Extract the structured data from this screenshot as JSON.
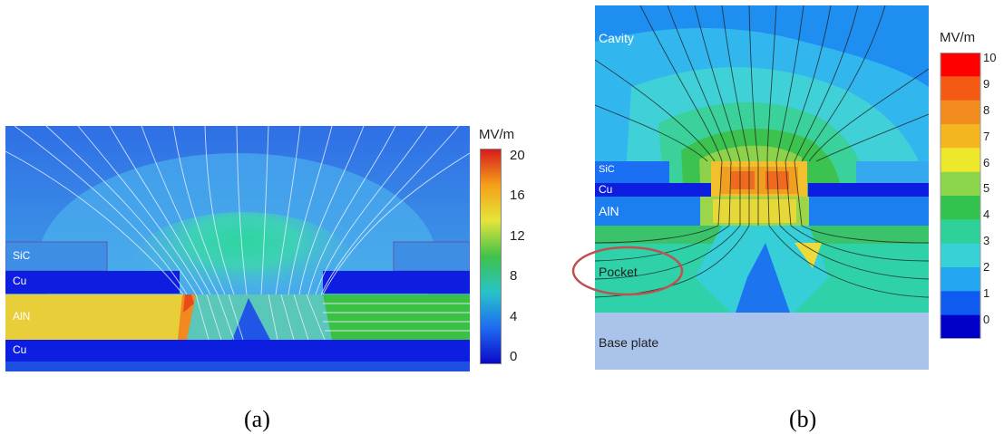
{
  "panel_a": {
    "caption": "(a)",
    "layers": {
      "sic": "SiC",
      "cu_top": "Cu",
      "aln": "AlN",
      "cu_bottom": "Cu"
    },
    "colorbar": {
      "unit": "MV/m",
      "ticks": [
        "20",
        "16",
        "12",
        "8",
        "4",
        "0"
      ],
      "range": [
        0,
        20
      ],
      "colors": [
        "#d7191c",
        "#f4a019",
        "#e6e43a",
        "#3fc24a",
        "#27c3c9",
        "#1f6bf0",
        "#0a08c8"
      ]
    }
  },
  "panel_b": {
    "caption": "(b)",
    "regions": {
      "cavity": "Cavity",
      "sic": "SiC",
      "cu": "Cu",
      "aln": "AlN",
      "pocket": "Pocket",
      "base_plate": "Base plate"
    },
    "colorbar": {
      "unit": "MV/m",
      "ticks": [
        "10",
        "9",
        "8",
        "7",
        "6",
        "5",
        "4",
        "3",
        "2",
        "1",
        "0"
      ],
      "range": [
        0,
        10
      ],
      "colors": [
        "#ff0000",
        "#f55a14",
        "#f28c1e",
        "#f3b61f",
        "#eee82c",
        "#8bd64a",
        "#32c24e",
        "#2fd19a",
        "#38d2d6",
        "#22a6f0",
        "#0f5af0",
        "#0000c8"
      ]
    },
    "highlight_color": "#c0504d"
  }
}
